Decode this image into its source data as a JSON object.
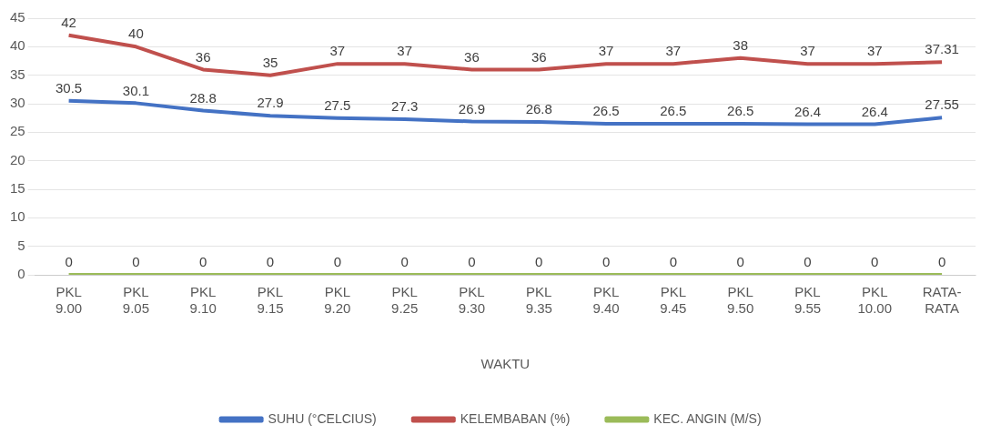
{
  "chart_data": {
    "type": "line",
    "categories": [
      "PKL 9.00",
      "PKL 9.05",
      "PKL 9.10",
      "PKL 9.15",
      "PKL 9.20",
      "PKL 9.25",
      "PKL 9.30",
      "PKL 9.35",
      "PKL 9.40",
      "PKL 9.45",
      "PKL 9.50",
      "PKL 9.55",
      "PKL 10.00",
      "RATA-RATA"
    ],
    "xlabel": "WAKTU",
    "series": [
      {
        "name": "SUHU (°CELCIUS)",
        "color": "#4472c4",
        "values": [
          30.5,
          30.1,
          28.8,
          27.9,
          27.5,
          27.3,
          26.9,
          26.8,
          26.5,
          26.5,
          26.5,
          26.4,
          26.4,
          27.55
        ]
      },
      {
        "name": "KELEMBABAN (%)",
        "color": "#c0504d",
        "values": [
          42,
          40,
          36,
          35,
          37,
          37,
          36,
          36,
          37,
          37,
          38,
          37,
          37,
          37.31
        ]
      },
      {
        "name": "KEC. ANGIN (M/S)",
        "color": "#9bbb59",
        "values": [
          0,
          0,
          0,
          0,
          0,
          0,
          0,
          0,
          0,
          0,
          0,
          0,
          0,
          0
        ]
      }
    ],
    "ylim": [
      0,
      45
    ],
    "yticks": [
      0,
      5,
      10,
      15,
      20,
      25,
      30,
      35,
      40,
      45
    ],
    "grid": "y",
    "legend": "bottom",
    "marker": "none",
    "line_style": "solid",
    "data_labels": true
  }
}
